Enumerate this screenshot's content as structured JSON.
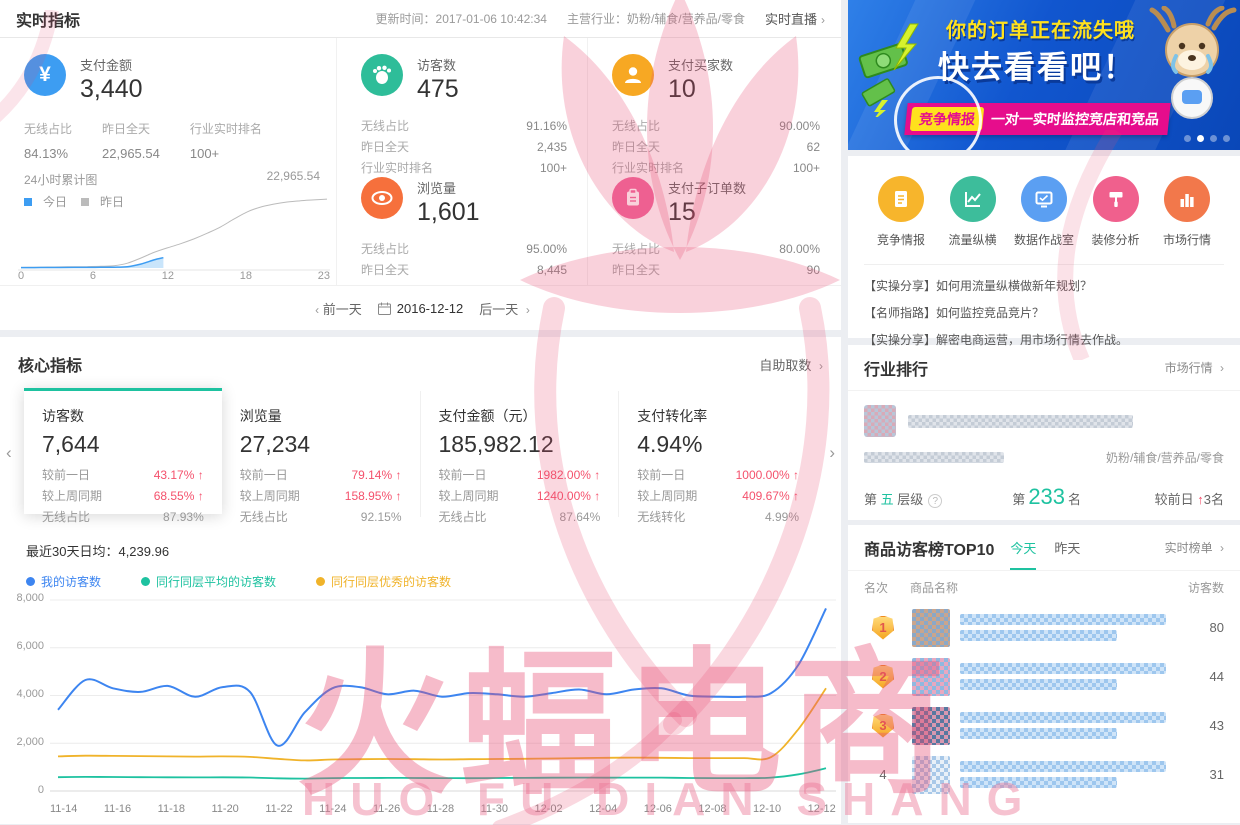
{
  "watermark": {
    "cn": "火蝠电商",
    "en": "HUO FU DIAN SHANG"
  },
  "realtime": {
    "title": "实时指标",
    "update_time": "更新时间：2017-01-06 10:42:34",
    "industry": "主营行业：奶粉/辅食/营养品/零食",
    "live_link": "实时直播",
    "cards": [
      {
        "title": "支付金额",
        "value": "3,440",
        "icon": "yen-icon",
        "color": "#3D9DF2",
        "stats": [
          {
            "label": "无线占比",
            "value": "84.13%"
          },
          {
            "label": "昨日全天",
            "value": "22,965.54"
          },
          {
            "label": "行业实时排名",
            "value": "100+"
          }
        ]
      },
      {
        "title": "访客数",
        "value": "475",
        "icon": "footprint-icon",
        "color": "#2EBD99",
        "stats": [
          {
            "label": "无线占比",
            "value": "91.16%"
          },
          {
            "label": "昨日全天",
            "value": "2,435"
          },
          {
            "label": "行业实时排名",
            "value": "100+"
          }
        ]
      },
      {
        "title": "支付买家数",
        "value": "10",
        "icon": "buyer-icon",
        "color": "#F7A823",
        "stats": [
          {
            "label": "无线占比",
            "value": "90.00%"
          },
          {
            "label": "昨日全天",
            "value": "62"
          },
          {
            "label": "行业实时排名",
            "value": "100+"
          }
        ]
      },
      {
        "title": "浏览量",
        "value": "1,601",
        "icon": "eye-icon",
        "color": "#F6703C",
        "stats": [
          {
            "label": "无线占比",
            "value": "95.00%"
          },
          {
            "label": "昨日全天",
            "value": "8,445"
          }
        ]
      },
      {
        "title": "支付子订单数",
        "value": "15",
        "icon": "order-icon",
        "color": "#F1679B",
        "stats": [
          {
            "label": "无线占比",
            "value": "80.00%"
          },
          {
            "label": "昨日全天",
            "value": "90"
          }
        ]
      }
    ],
    "mini_chart": {
      "title": "24小时累计图",
      "legend_today": "今日",
      "legend_yesterday": "昨日",
      "peak_label": "22,965.54"
    }
  },
  "date_nav": {
    "prev": "前一天",
    "date": "2016-12-12",
    "next": "后一天"
  },
  "core": {
    "title": "核心指标",
    "link": "自助取数",
    "cards": [
      {
        "title": "访客数",
        "value": "7,644",
        "rows": [
          {
            "label": "较前一日",
            "value": "43.17%"
          },
          {
            "label": "较上周同期",
            "value": "68.55%"
          },
          {
            "label": "无线占比",
            "value": "87.93%"
          }
        ]
      },
      {
        "title": "浏览量",
        "value": "27,234",
        "rows": [
          {
            "label": "较前一日",
            "value": "79.14%"
          },
          {
            "label": "较上周同期",
            "value": "158.95%"
          },
          {
            "label": "无线占比",
            "value": "92.15%"
          }
        ]
      },
      {
        "title": "支付金额（元）",
        "value": "185,982.12",
        "rows": [
          {
            "label": "较前一日",
            "value": "1982.00%"
          },
          {
            "label": "较上周同期",
            "value": "1240.00%"
          },
          {
            "label": "无线占比",
            "value": "87.64%"
          }
        ]
      },
      {
        "title": "支付转化率",
        "value": "4.94%",
        "rows": [
          {
            "label": "较前一日",
            "value": "1000.00%"
          },
          {
            "label": "较上周同期",
            "value": "409.67%"
          },
          {
            "label": "无线转化",
            "value": "4.99%"
          }
        ]
      }
    ],
    "avg_label": "最近30天日均：4,239.96"
  },
  "chart_data": [
    {
      "type": "area",
      "title": "24小时累计图",
      "ylim": [
        0,
        24000
      ],
      "x_ticks": [
        "0",
        "6",
        "12",
        "18",
        "23"
      ],
      "peak_label": "22,965.54",
      "series": [
        {
          "name": "今日",
          "color": "#3D9DF2",
          "fill": "#BFE0FA",
          "x": [
            0,
            1,
            2,
            3,
            4,
            5,
            6,
            7,
            8,
            9,
            10,
            10.7
          ],
          "values": [
            120,
            140,
            160,
            180,
            195,
            210,
            225,
            260,
            430,
            1300,
            2700,
            3440
          ]
        },
        {
          "name": "昨日",
          "color": "#BBBBBB",
          "x": [
            0,
            1,
            2,
            3,
            4,
            5,
            6,
            7,
            8,
            9,
            10,
            11,
            12,
            13,
            14,
            15,
            16,
            17,
            18,
            19,
            20,
            21,
            22,
            23
          ],
          "values": [
            200,
            260,
            320,
            380,
            430,
            480,
            560,
            750,
            1600,
            3300,
            5200,
            6700,
            8100,
            9700,
            11600,
            13700,
            16300,
            18700,
            20300,
            21300,
            22000,
            22400,
            22700,
            22965
          ]
        }
      ]
    },
    {
      "type": "line",
      "ylim": [
        0,
        8000
      ],
      "grid": true,
      "legend_position": "top-left",
      "ytick_labels": [
        "8,000",
        "6,000",
        "4,000",
        "2,000",
        "0"
      ],
      "x_tick_labels": [
        "11-14",
        "11-16",
        "11-18",
        "11-20",
        "11-22",
        "11-24",
        "11-26",
        "11-28",
        "11-30",
        "12-02",
        "12-04",
        "12-06",
        "12-08",
        "12-10",
        "12-12"
      ],
      "categories": [
        "11-14",
        "11-15",
        "11-16",
        "11-17",
        "11-18",
        "11-19",
        "11-20",
        "11-21",
        "11-22",
        "11-23",
        "11-24",
        "11-25",
        "11-26",
        "11-27",
        "11-28",
        "11-29",
        "11-30",
        "12-01",
        "12-02",
        "12-03",
        "12-04",
        "12-05",
        "12-06",
        "12-07",
        "12-08",
        "12-09",
        "12-10",
        "12-11",
        "12-12"
      ],
      "series": [
        {
          "name": "我的访客数",
          "color": "#3D85F0",
          "values": [
            3400,
            4650,
            4300,
            4150,
            4400,
            3950,
            4350,
            4150,
            1900,
            3300,
            4300,
            4350,
            4050,
            4200,
            3950,
            4100,
            4050,
            3950,
            4100,
            4250,
            4050,
            4250,
            4300,
            4000,
            3950,
            3950,
            4100,
            5300,
            7650
          ]
        },
        {
          "name": "同行同层平均的访客数",
          "color": "#1EC2A0",
          "values": [
            580,
            590,
            585,
            580,
            575,
            570,
            575,
            565,
            530,
            520,
            540,
            545,
            550,
            545,
            540,
            535,
            545,
            550,
            555,
            560,
            555,
            560,
            560,
            545,
            540,
            540,
            560,
            700,
            950
          ]
        },
        {
          "name": "同行同层优秀的访客数",
          "color": "#F0B32A",
          "values": [
            1450,
            1480,
            1470,
            1460,
            1450,
            1440,
            1450,
            1430,
            1350,
            1280,
            1320,
            1330,
            1340,
            1330,
            1320,
            1330,
            1340,
            1350,
            1360,
            1380,
            1390,
            1400,
            1390,
            1380,
            1380,
            1380,
            1420,
            2600,
            4300
          ]
        }
      ]
    }
  ],
  "sidebar": {
    "banner": {
      "headline": "你的订单正在流失哦",
      "headline2": "快去看看吧！",
      "tag": "竞争情报",
      "subline": "一对一实时监控竞店和竞品"
    },
    "quick_links": [
      {
        "label": "竞争情报",
        "color": "#F7B52C",
        "icon": "report-icon"
      },
      {
        "label": "流量纵横",
        "color": "#3DBD9B",
        "icon": "traffic-chart-icon"
      },
      {
        "label": "数据作战室",
        "color": "#5B9FF2",
        "icon": "war-room-icon"
      },
      {
        "label": "装修分析",
        "color": "#F0608D",
        "icon": "decorate-icon"
      },
      {
        "label": "市场行情",
        "color": "#F2784B",
        "icon": "market-icon"
      }
    ],
    "news": [
      {
        "text": "【实操分享】如何用流量纵横做新年规划？"
      },
      {
        "text": "【名师指路】如何监控竞品竞片？"
      },
      {
        "text": "【实操分享】解密电商运营，用市场行情去作战。"
      }
    ],
    "industry": {
      "title": "行业排行",
      "link": "市场行情",
      "category": "奶粉/辅食/营养品/零食",
      "level_pre": "第",
      "level": "五",
      "level_post": "层级",
      "rank_pre": "第",
      "rank": "233",
      "rank_post": "名",
      "delta_pre": "较前日",
      "delta": "3名"
    },
    "top10": {
      "title": "商品访客榜TOP10",
      "tab_today": "今天",
      "tab_yesterday": "昨天",
      "link": "实时榜单",
      "headers": {
        "rank": "名次",
        "name": "商品名称",
        "visitors": "访客数"
      },
      "rows": [
        {
          "rank": "1",
          "visitors": "80"
        },
        {
          "rank": "2",
          "visitors": "44"
        },
        {
          "rank": "3",
          "visitors": "43"
        },
        {
          "rank": "4",
          "visitors": "31"
        }
      ]
    }
  }
}
